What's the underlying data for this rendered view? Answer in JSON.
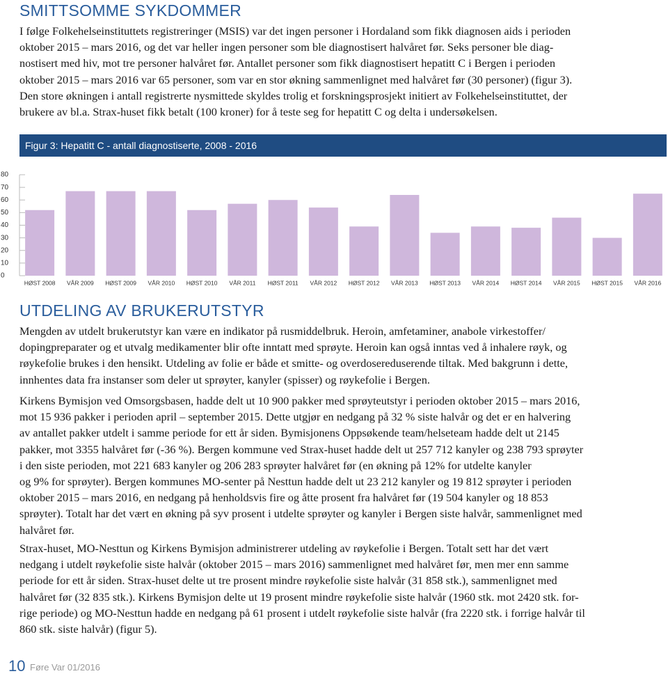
{
  "section1": {
    "title": "SMITTSOMME SYKDOMMER",
    "paragraph": [
      "I følge Folkehelseinstituttets registreringer (MSIS) var det ingen personer i Hordaland som fikk diagnosen aids i perioden",
      "oktober 2015 – mars 2016, og det var heller ingen personer som ble diagnostisert halvåret før. Seks personer ble diag-",
      "nostisert med hiv, mot tre personer halvåret før. Antallet personer som fikk diagnostisert hepatitt C i Bergen i perioden",
      "oktober 2015 – mars 2016 var 65 personer, som var en stor økning sammenlignet med halvåret før (30 personer) (figur 3).",
      "Den store økningen i antall registrerte nysmittede skyldes trolig et forskningsprosjekt initiert av Folkehelseinstituttet, der",
      "brukere av bl.a. Strax-huset fikk betalt (100 kroner) for å teste seg for hepatitt C og delta i undersøkelsen."
    ]
  },
  "chart_data": {
    "type": "bar",
    "title": "Figur 3: Hepatitt C - antall diagnostiserte, 2008 - 2016",
    "categories": [
      "HØST 2008",
      "VÅR 2009",
      "HØST 2009",
      "VÅR 2010",
      "HØST 2010",
      "VÅR 2011",
      "HØST 2011",
      "VÅR 2012",
      "HØST 2012",
      "VÅR 2013",
      "HØST 2013",
      "VÅR 2014",
      "HØST 2014",
      "VÅR 2015",
      "HØST 2015",
      "VÅR 2016"
    ],
    "values": [
      52,
      67,
      67,
      67,
      52,
      57,
      60,
      54,
      39,
      64,
      34,
      39,
      38,
      46,
      30,
      65
    ],
    "color": "#cfb7dc",
    "ylim": [
      0,
      80
    ],
    "yticks": [
      0,
      10,
      20,
      30,
      40,
      50,
      60,
      70,
      80
    ],
    "grid": false
  },
  "section2": {
    "title": "UTDELING AV BRUKERUTSTYR",
    "paragraphs": [
      [
        "Mengden av utdelt brukerutstyr kan være en indikator på rusmiddelbruk. Heroin, amfetaminer, anabole virkestoffer/",
        "dopingpreparater og et utvalg medikamenter blir ofte inntatt med sprøyte. Heroin kan også inntas ved å inhalere røyk, og",
        "røykefolie brukes i den hensikt. Utdeling av folie er både et smitte- og overdosereduserende tiltak. Med bakgrunn i dette,",
        "innhentes data fra instanser som deler ut sprøyter, kanyler (spisser) og røykefolie i Bergen."
      ],
      [
        "Kirkens Bymisjon ved Omsorgsbasen, hadde delt ut 10 900 pakker med sprøyteutstyr i perioden oktober 2015 – mars 2016,",
        "mot 15 936 pakker i perioden april – september 2015. Dette utgjør en nedgang på 32 % siste halvår og det er en halvering",
        "av antallet pakker utdelt i samme periode for ett år siden. Bymisjonens Oppsøkende team/helseteam hadde delt ut 2145",
        "pakker, mot 3355 halvåret før (-36 %).  Bergen kommune ved Strax-huset hadde delt ut 257 712 kanyler og 238 793 sprøyter",
        "i den siste perioden, mot 221 683 kanyler og 206 283 sprøyter halvåret før (en økning på 12% for utdelte kanyler",
        "og 9% for sprøyter). Bergen kommunes MO-senter på Nesttun hadde delt ut 23 212 kanyler og 19 812 sprøyter i perioden",
        "oktober 2015 – mars 2016, en nedgang på henholdsvis fire og åtte prosent fra halvåret før (19 504 kanyler og 18 853",
        "sprøyter). Totalt har det vært en økning på syv prosent i utdelte sprøyter og kanyler i Bergen siste halvår, sammenlignet med",
        "halvåret før."
      ],
      [
        "Strax-huset, MO-Nesttun og Kirkens Bymisjon administrerer utdeling av røykefolie i Bergen. Totalt sett har det vært",
        "nedgang i utdelt røykefolie siste halvår (oktober 2015 – mars 2016) sammenlignet med halvåret før, men mer enn samme",
        "periode for ett år siden. Strax-huset delte ut tre prosent mindre røykefolie siste halvår (31 858 stk.), sammenlignet med",
        "halvåret før (32 835 stk.). Kirkens Bymisjon delte ut 19 prosent mindre røykefolie siste halvår (1960 stk. mot 2420 stk. for-",
        "rige periode) og MO-Nesttun hadde en nedgang på 61 prosent i utdelt røykefolie siste halvår (fra 2220 stk. i forrige halvår til",
        "860 stk. siste halvår) (figur 5)."
      ]
    ]
  },
  "footer": {
    "page": "10",
    "publication": "Føre Var 01/2016"
  }
}
